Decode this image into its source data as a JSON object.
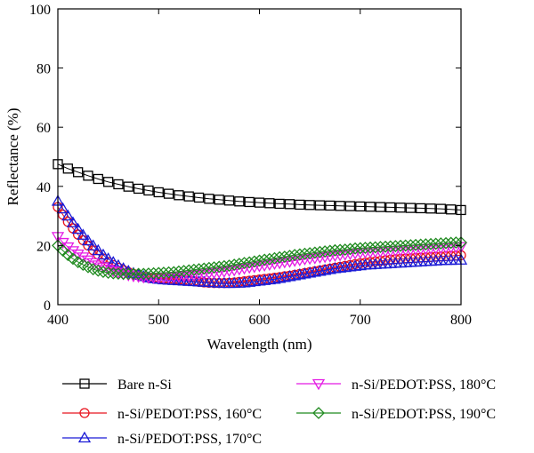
{
  "chart_data": {
    "type": "line",
    "xlabel": "Wavelength (nm)",
    "ylabel": "Reflectance (%)",
    "xlim": [
      400,
      800
    ],
    "ylim": [
      0,
      100
    ],
    "xticks": [
      400,
      500,
      600,
      700,
      800
    ],
    "yticks": [
      0,
      20,
      40,
      60,
      80,
      100
    ],
    "grid": false,
    "legend_position": "bottom",
    "series": [
      {
        "name": "Bare n-Si",
        "color": "#000000",
        "marker": "square",
        "x": [
          400,
          410,
          420,
          430,
          440,
          450,
          460,
          470,
          480,
          490,
          500,
          510,
          520,
          530,
          540,
          550,
          560,
          570,
          580,
          590,
          600,
          610,
          620,
          630,
          640,
          650,
          660,
          670,
          680,
          690,
          700,
          710,
          720,
          730,
          740,
          750,
          760,
          770,
          780,
          790,
          800
        ],
        "y": [
          47.5,
          46,
          44.8,
          43.6,
          42.5,
          41.5,
          40.7,
          39.9,
          39.2,
          38.6,
          38,
          37.5,
          37,
          36.6,
          36.2,
          35.8,
          35.5,
          35.2,
          34.9,
          34.7,
          34.5,
          34.3,
          34.1,
          34,
          33.8,
          33.7,
          33.6,
          33.5,
          33.4,
          33.3,
          33.2,
          33.1,
          33,
          32.9,
          32.8,
          32.7,
          32.6,
          32.5,
          32.4,
          32.2,
          32
        ]
      },
      {
        "name": "n-Si/PEDOT:PSS, 160°C",
        "color": "#e8141e",
        "marker": "circle",
        "x": [
          400,
          405,
          410,
          415,
          420,
          425,
          430,
          435,
          440,
          445,
          450,
          455,
          460,
          465,
          470,
          475,
          480,
          485,
          490,
          495,
          500,
          505,
          510,
          515,
          520,
          525,
          530,
          535,
          540,
          545,
          550,
          555,
          560,
          565,
          570,
          575,
          580,
          585,
          590,
          595,
          600,
          605,
          610,
          615,
          620,
          625,
          630,
          635,
          640,
          645,
          650,
          655,
          660,
          665,
          670,
          675,
          680,
          685,
          690,
          695,
          700,
          705,
          710,
          715,
          720,
          725,
          730,
          735,
          740,
          745,
          750,
          755,
          760,
          765,
          770,
          775,
          780,
          785,
          790,
          795,
          800
        ],
        "y": [
          33,
          30.4,
          28,
          25.8,
          23.7,
          21.8,
          20,
          18.4,
          16.9,
          15.6,
          14.4,
          13.4,
          12.5,
          11.7,
          11,
          10.4,
          9.9,
          9.5,
          9.2,
          9,
          8.9,
          8.8,
          8.7,
          8.6,
          8.5,
          8.3,
          8.1,
          7.9,
          7.7,
          7.5,
          7.4,
          7.3,
          7.3,
          7.3,
          7.4,
          7.5,
          7.7,
          7.9,
          8.1,
          8.3,
          8.5,
          8.7,
          8.9,
          9.1,
          9.3,
          9.6,
          9.8,
          10.1,
          10.4,
          10.7,
          11,
          11.3,
          11.6,
          11.9,
          12.2,
          12.5,
          12.8,
          13.1,
          13.4,
          13.7,
          14,
          14.2,
          14.4,
          14.6,
          14.8,
          15,
          15.2,
          15.4,
          15.5,
          15.6,
          15.7,
          15.8,
          15.9,
          16,
          16.1,
          16.2,
          16.3,
          16.4,
          16.5,
          16.6,
          16.7
        ]
      },
      {
        "name": "n-Si/PEDOT:PSS, 170°C",
        "color": "#1a1ad6",
        "marker": "triangle-up",
        "x": [
          400,
          405,
          410,
          415,
          420,
          425,
          430,
          435,
          440,
          445,
          450,
          455,
          460,
          465,
          470,
          475,
          480,
          485,
          490,
          495,
          500,
          505,
          510,
          515,
          520,
          525,
          530,
          535,
          540,
          545,
          550,
          555,
          560,
          565,
          570,
          575,
          580,
          585,
          590,
          595,
          600,
          605,
          610,
          615,
          620,
          625,
          630,
          635,
          640,
          645,
          650,
          655,
          660,
          665,
          670,
          675,
          680,
          685,
          690,
          695,
          700,
          705,
          710,
          715,
          720,
          725,
          730,
          735,
          740,
          745,
          750,
          755,
          760,
          765,
          770,
          775,
          780,
          785,
          790,
          795,
          800
        ],
        "y": [
          35,
          32.4,
          30,
          27.7,
          25.5,
          23.5,
          21.6,
          19.9,
          18.3,
          16.8,
          15.5,
          14.3,
          13.2,
          12.2,
          11.3,
          10.6,
          10,
          9.5,
          9.1,
          8.8,
          8.6,
          8.4,
          8.3,
          8.2,
          8.1,
          8,
          7.9,
          7.8,
          7.7,
          7.6,
          7.5,
          7.4,
          7.3,
          7.2,
          7.2,
          7.2,
          7.3,
          7.4,
          7.6,
          7.8,
          8,
          8.2,
          8.4,
          8.6,
          8.9,
          9.2,
          9.5,
          9.8,
          10.1,
          10.4,
          10.7,
          11,
          11.3,
          11.6,
          11.9,
          12.2,
          12.4,
          12.6,
          12.8,
          13,
          13.2,
          13.4,
          13.5,
          13.6,
          13.7,
          13.8,
          13.9,
          14,
          14.1,
          14.2,
          14.3,
          14.4,
          14.5,
          14.6,
          14.7,
          14.8,
          14.9,
          15,
          15,
          15.1,
          15.1
        ]
      },
      {
        "name": "n-Si/PEDOT:PSS, 180°C",
        "color": "#e41be4",
        "marker": "triangle-down",
        "x": [
          400,
          405,
          410,
          415,
          420,
          425,
          430,
          435,
          440,
          445,
          450,
          455,
          460,
          465,
          470,
          475,
          480,
          485,
          490,
          495,
          500,
          505,
          510,
          515,
          520,
          525,
          530,
          535,
          540,
          545,
          550,
          555,
          560,
          565,
          570,
          575,
          580,
          585,
          590,
          595,
          600,
          605,
          610,
          615,
          620,
          625,
          630,
          635,
          640,
          645,
          650,
          655,
          660,
          665,
          670,
          675,
          680,
          685,
          690,
          695,
          700,
          705,
          710,
          715,
          720,
          725,
          730,
          735,
          740,
          745,
          750,
          755,
          760,
          765,
          770,
          775,
          780,
          785,
          790,
          795,
          800
        ],
        "y": [
          23,
          21,
          19.5,
          18.2,
          17.1,
          16.1,
          15.1,
          14.2,
          13.4,
          12.7,
          12,
          11.4,
          10.9,
          10.4,
          10,
          9.7,
          9.5,
          9.3,
          9.2,
          9.2,
          9.2,
          9.2,
          9.3,
          9.4,
          9.5,
          9.7,
          9.8,
          10,
          10.2,
          10.4,
          10.6,
          10.8,
          11,
          11.2,
          11.5,
          11.7,
          12,
          12.3,
          12.6,
          12.8,
          13.1,
          13.3,
          13.6,
          13.9,
          14.1,
          14.4,
          14.6,
          14.9,
          15.1,
          15.4,
          15.6,
          15.8,
          16,
          16.2,
          16.4,
          16.6,
          16.8,
          17,
          17.2,
          17.4,
          17.6,
          17.7,
          17.8,
          17.9,
          18,
          18.1,
          18.2,
          18.3,
          18.4,
          18.5,
          18.6,
          18.7,
          18.8,
          18.9,
          19,
          19.1,
          19.2,
          19.3,
          19.4,
          19.5,
          19.6
        ]
      },
      {
        "name": "n-Si/PEDOT:PSS, 190°C",
        "color": "#1f8a1f",
        "marker": "diamond",
        "x": [
          400,
          405,
          410,
          415,
          420,
          425,
          430,
          435,
          440,
          445,
          450,
          455,
          460,
          465,
          470,
          475,
          480,
          485,
          490,
          495,
          500,
          505,
          510,
          515,
          520,
          525,
          530,
          535,
          540,
          545,
          550,
          555,
          560,
          565,
          570,
          575,
          580,
          585,
          590,
          595,
          600,
          605,
          610,
          615,
          620,
          625,
          630,
          635,
          640,
          645,
          650,
          655,
          660,
          665,
          670,
          675,
          680,
          685,
          690,
          695,
          700,
          705,
          710,
          715,
          720,
          725,
          730,
          735,
          740,
          745,
          750,
          755,
          760,
          765,
          770,
          775,
          780,
          785,
          790,
          795,
          800
        ],
        "y": [
          20,
          18.3,
          16.8,
          15.5,
          14.4,
          13.5,
          12.7,
          12,
          11.5,
          11.1,
          10.8,
          10.6,
          10.5,
          10.4,
          10.4,
          10.4,
          10.4,
          10.4,
          10.5,
          10.6,
          10.7,
          10.8,
          10.9,
          11,
          11.2,
          11.4,
          11.6,
          11.8,
          12,
          12.2,
          12.4,
          12.6,
          12.8,
          13,
          13.2,
          13.5,
          13.8,
          14.1,
          14.3,
          14.6,
          14.9,
          15.2,
          15.4,
          15.7,
          16,
          16.2,
          16.5,
          16.8,
          17,
          17.2,
          17.4,
          17.6,
          17.8,
          18,
          18.2,
          18.4,
          18.5,
          18.6,
          18.8,
          19,
          19.1,
          19.2,
          19.3,
          19.4,
          19.5,
          19.6,
          19.7,
          19.8,
          19.9,
          20,
          20.1,
          20.2,
          20.3,
          20.4,
          20.5,
          20.6,
          20.7,
          20.8,
          20.9,
          21,
          21
        ]
      }
    ]
  }
}
